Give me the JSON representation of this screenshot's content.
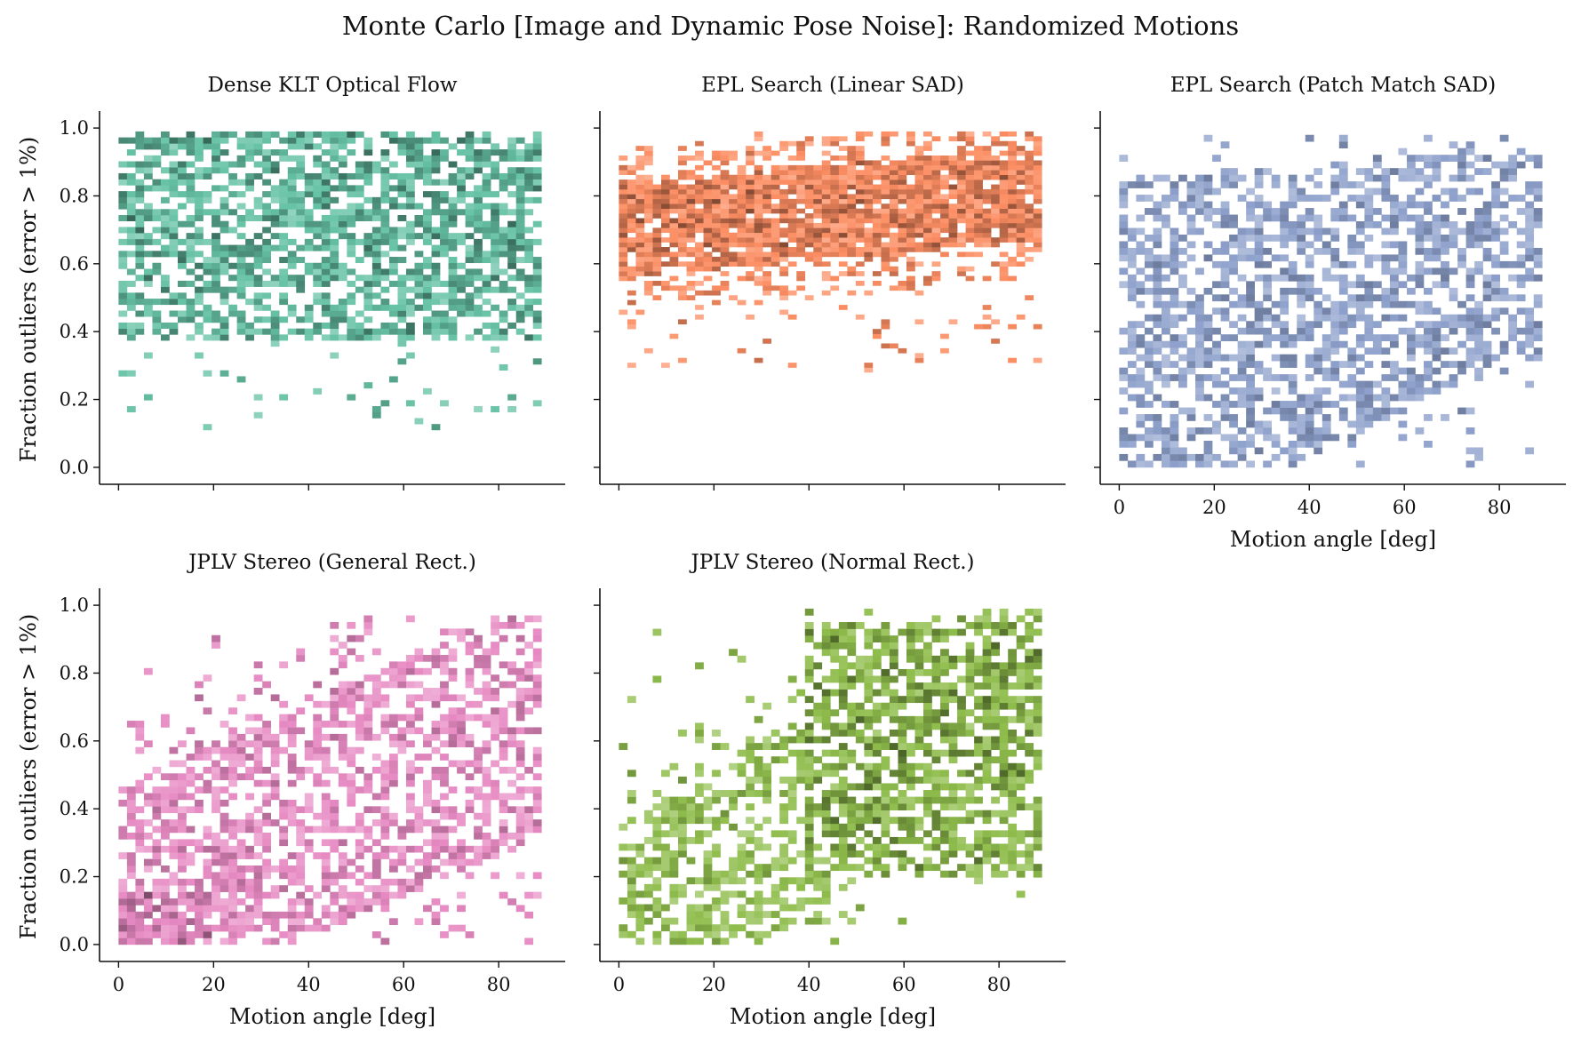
{
  "figure": {
    "title": "Monte Carlo [Image and Dynamic Pose Noise]: Randomized Motions"
  },
  "chart_data": [
    {
      "type": "heatmap",
      "title": "Dense KLT Optical Flow",
      "xlabel": "",
      "ylabel": "Fraction outliers (error > 1%)",
      "xlim": [
        -4,
        94
      ],
      "ylim": [
        -0.05,
        1.05
      ],
      "xticks": [
        0,
        20,
        40,
        60,
        80
      ],
      "yticks": [
        0.0,
        0.2,
        0.4,
        0.6,
        0.8,
        1.0
      ],
      "xticklabels": [],
      "yticklabels": [
        "0.0",
        "0.2",
        "0.4",
        "0.6",
        "0.8",
        "1.0"
      ],
      "color": "#66c2a5",
      "x_range": [
        0,
        89
      ],
      "y_range": [
        0.11,
        0.99
      ],
      "dense_y_range": [
        0.4,
        0.96
      ],
      "trend": "flat, spread 0.4–1.0 across all angles; densest near 80 deg at 0.7–0.9",
      "grid": false,
      "legend": "none"
    },
    {
      "type": "heatmap",
      "title": "EPL Search (Linear SAD)",
      "xlabel": "",
      "ylabel": "",
      "xlim": [
        -4,
        94
      ],
      "ylim": [
        -0.05,
        1.05
      ],
      "xticks": [
        0,
        20,
        40,
        60,
        80
      ],
      "yticks": [
        0.0,
        0.2,
        0.4,
        0.6,
        0.8,
        1.0
      ],
      "xticklabels": [],
      "yticklabels": [],
      "color": "#fc8d62",
      "x_range": [
        0,
        89
      ],
      "y_range": [
        0.28,
        0.99
      ],
      "dense_y_range": [
        0.6,
        0.92
      ],
      "trend": "concentrated 0.6–0.9, rising slightly with angle; densest near 80 deg at ~0.8",
      "grid": false,
      "legend": "none"
    },
    {
      "type": "heatmap",
      "title": "EPL Search (Patch Match SAD)",
      "xlabel": "Motion angle [deg]",
      "ylabel": "",
      "xlim": [
        -4,
        94
      ],
      "ylim": [
        -0.05,
        1.05
      ],
      "xticks": [
        0,
        20,
        40,
        60,
        80
      ],
      "yticks": [
        0.0,
        0.2,
        0.4,
        0.6,
        0.8,
        1.0
      ],
      "xticklabels": [
        "0",
        "20",
        "40",
        "60",
        "80"
      ],
      "yticklabels": [],
      "color": "#8da0cb",
      "x_range": [
        0,
        89
      ],
      "y_range": [
        0.0,
        0.98
      ],
      "dense_y_range": [
        0.0,
        0.9
      ],
      "trend": "broad spread at low angles, concentrating toward 0.4–0.8 at high angles; densest near 80 deg at ~0.55",
      "grid": false,
      "legend": "none"
    },
    {
      "type": "heatmap",
      "title": "JPLV Stereo (General Rect.)",
      "xlabel": "Motion angle [deg]",
      "ylabel": "Fraction outliers (error > 1%)",
      "xlim": [
        -4,
        94
      ],
      "ylim": [
        -0.05,
        1.05
      ],
      "xticks": [
        0,
        20,
        40,
        60,
        80
      ],
      "yticks": [
        0.0,
        0.2,
        0.4,
        0.6,
        0.8,
        1.0
      ],
      "xticklabels": [
        "0",
        "20",
        "40",
        "60",
        "80"
      ],
      "yticklabels": [
        "0.0",
        "0.2",
        "0.4",
        "0.6",
        "0.8",
        "1.0"
      ],
      "color": "#e78ac3",
      "x_range": [
        0,
        89
      ],
      "y_range": [
        0.0,
        0.97
      ],
      "dense_y_range": [
        0.0,
        0.9
      ],
      "trend": "dense near 0 at low angles, rising with angle to 0.5–0.7 near 80 deg",
      "grid": false,
      "legend": "none"
    },
    {
      "type": "heatmap",
      "title": "JPLV Stereo (Normal Rect.)",
      "xlabel": "Motion angle [deg]",
      "ylabel": "",
      "xlim": [
        -4,
        94
      ],
      "ylim": [
        -0.05,
        1.05
      ],
      "xticks": [
        0,
        20,
        40,
        60,
        80
      ],
      "yticks": [
        0.0,
        0.2,
        0.4,
        0.6,
        0.8,
        1.0
      ],
      "xticklabels": [
        "0",
        "20",
        "40",
        "60",
        "80"
      ],
      "yticklabels": [],
      "color": "#8fbd4c",
      "x_range": [
        0,
        89
      ],
      "y_range": [
        0.0,
        0.99
      ],
      "dense_y_range": [
        0.0,
        0.97
      ],
      "trend": "sparse at low angles near 0, increasing with angle; densest at 40–80 deg over 0.2–0.9",
      "grid": false,
      "legend": "none"
    }
  ]
}
